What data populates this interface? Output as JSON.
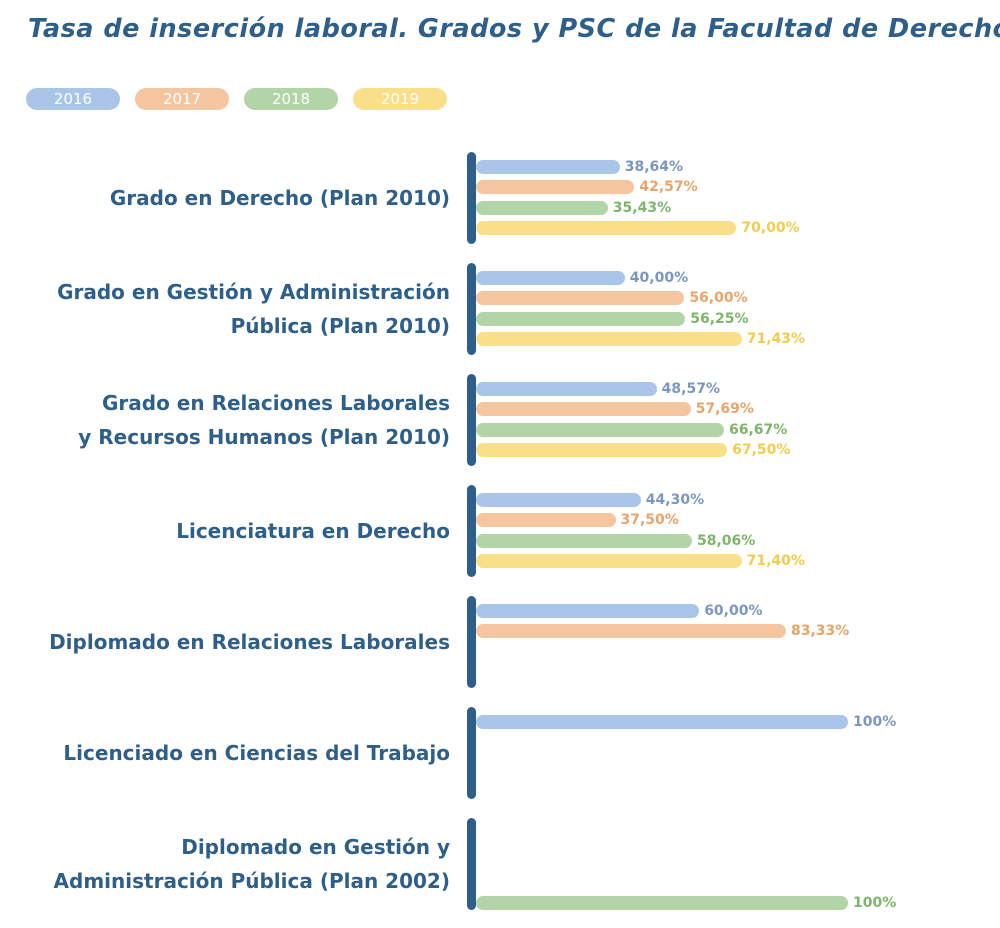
{
  "chart_data": {
    "type": "bar",
    "orientation": "horizontal",
    "title": "Tasa de inserción laboral. Grados y PSC de la Facultad de Derecho:",
    "xlim": [
      0,
      100
    ],
    "legend_position": "top-left",
    "series": [
      {
        "name": "2016",
        "color": "#a9c5e8",
        "label_color": "#7a97bf"
      },
      {
        "name": "2017",
        "color": "#f4c59f",
        "label_color": "#e8a46a"
      },
      {
        "name": "2018",
        "color": "#b2d4a7",
        "label_color": "#7db56a"
      },
      {
        "name": "2019",
        "color": "#f9e088",
        "label_color": "#f2cc4a"
      }
    ],
    "groups": [
      {
        "label_lines": [
          "Grado en Derecho (Plan 2010)"
        ],
        "bars": [
          {
            "series": 0,
            "value": 38.64,
            "label": "38,64%"
          },
          {
            "series": 1,
            "value": 42.57,
            "label": "42,57%"
          },
          {
            "series": 2,
            "value": 35.43,
            "label": "35,43%"
          },
          {
            "series": 3,
            "value": 70.0,
            "label": "70,00%"
          }
        ]
      },
      {
        "label_lines": [
          "Grado en Gestión y Administración",
          "Pública (Plan 2010)"
        ],
        "bars": [
          {
            "series": 0,
            "value": 40.0,
            "label": "40,00%"
          },
          {
            "series": 1,
            "value": 56.0,
            "label": "56,00%"
          },
          {
            "series": 2,
            "value": 56.25,
            "label": "56,25%"
          },
          {
            "series": 3,
            "value": 71.43,
            "label": "71,43%"
          }
        ]
      },
      {
        "label_lines": [
          "Grado en Relaciones Laborales",
          "y Recursos Humanos (Plan 2010)"
        ],
        "bars": [
          {
            "series": 0,
            "value": 48.57,
            "label": "48,57%"
          },
          {
            "series": 1,
            "value": 57.69,
            "label": "57,69%"
          },
          {
            "series": 2,
            "value": 66.67,
            "label": "66,67%"
          },
          {
            "series": 3,
            "value": 67.5,
            "label": "67,50%"
          }
        ]
      },
      {
        "label_lines": [
          "Licenciatura en Derecho"
        ],
        "bars": [
          {
            "series": 0,
            "value": 44.3,
            "label": "44,30%"
          },
          {
            "series": 1,
            "value": 37.5,
            "label": "37,50%"
          },
          {
            "series": 2,
            "value": 58.06,
            "label": "58,06%"
          },
          {
            "series": 3,
            "value": 71.4,
            "label": "71,40%"
          }
        ]
      },
      {
        "label_lines": [
          "Diplomado en Relaciones Laborales"
        ],
        "bars": [
          {
            "series": 0,
            "value": 60.0,
            "label": "60,00%"
          },
          {
            "series": 1,
            "value": 83.33,
            "label": "83,33%"
          }
        ]
      },
      {
        "label_lines": [
          "Licenciado en Ciencias del Trabajo"
        ],
        "bars": [
          {
            "series": 0,
            "value": 100,
            "label": "100%"
          }
        ]
      },
      {
        "label_lines": [
          "Diplomado en Gestión y",
          "Administración Pública (Plan 2002)"
        ],
        "bars": [
          {
            "series": 2,
            "value": 100,
            "label": "100%"
          }
        ]
      }
    ]
  }
}
